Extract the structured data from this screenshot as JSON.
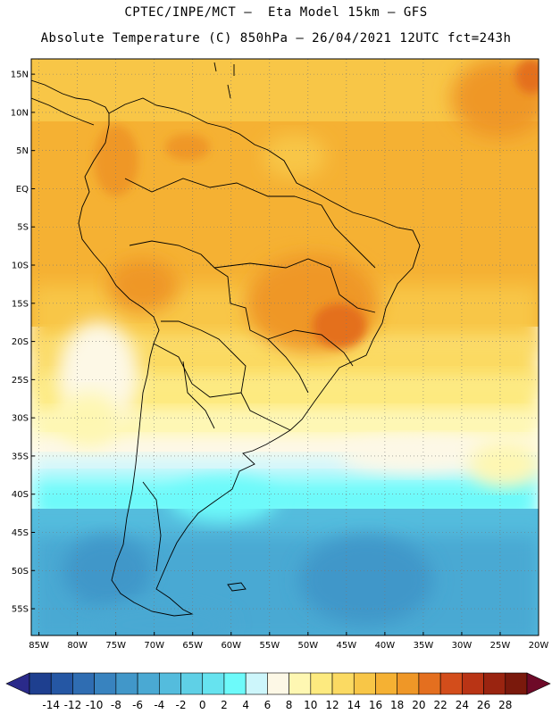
{
  "header": {
    "line1": "CPTEC/INPE/MCT –  Eta Model 15km – GFS",
    "line2": "Absolute Temperature (C) 850hPa – 26/04/2021 12UTC fct=243h"
  },
  "map": {
    "lat_labels": [
      "15N",
      "10N",
      "5N",
      "EQ",
      "5S",
      "10S",
      "15S",
      "20S",
      "25S",
      "30S",
      "35S",
      "40S",
      "45S",
      "50S",
      "55S"
    ],
    "lon_labels": [
      "85W",
      "80W",
      "75W",
      "70W",
      "65W",
      "60W",
      "55W",
      "50W",
      "45W",
      "40W",
      "35W",
      "30W",
      "25W",
      "20W"
    ],
    "lat_values": [
      15,
      10,
      5,
      0,
      -5,
      -10,
      -15,
      -20,
      -25,
      -30,
      -35,
      -40,
      -45,
      -50,
      -55
    ],
    "lon_values": [
      -85,
      -80,
      -75,
      -70,
      -65,
      -60,
      -55,
      -50,
      -45,
      -40,
      -35,
      -30,
      -25,
      -20
    ],
    "extent": {
      "lon_min": -86,
      "lon_max": -20,
      "lat_min": -58.5,
      "lat_max": 17
    },
    "field": "temperature at 850hPa"
  },
  "colorbar": {
    "labels": [
      "-14",
      "-12",
      "-10",
      "-8",
      "-6",
      "-4",
      "-2",
      "0",
      "2",
      "4",
      "6",
      "8",
      "10",
      "12",
      "14",
      "16",
      "18",
      "20",
      "22",
      "24",
      "26",
      "28"
    ],
    "colors": [
      "#1e3f8f",
      "#2557a4",
      "#2f6db2",
      "#3883bf",
      "#4197c9",
      "#4aa9d3",
      "#54bcdd",
      "#5fd0e6",
      "#66e3ef",
      "#6dfafa",
      "#cdf6fb",
      "#fdf8e6",
      "#fef7b2",
      "#fdea7f",
      "#fbda62",
      "#f8c647",
      "#f5b133",
      "#ef9727",
      "#e46f1f",
      "#d34d1b",
      "#b93415",
      "#9a2410",
      "#7a190c"
    ],
    "under_color": "#2a2a8a",
    "over_color": "#6e0a28"
  }
}
